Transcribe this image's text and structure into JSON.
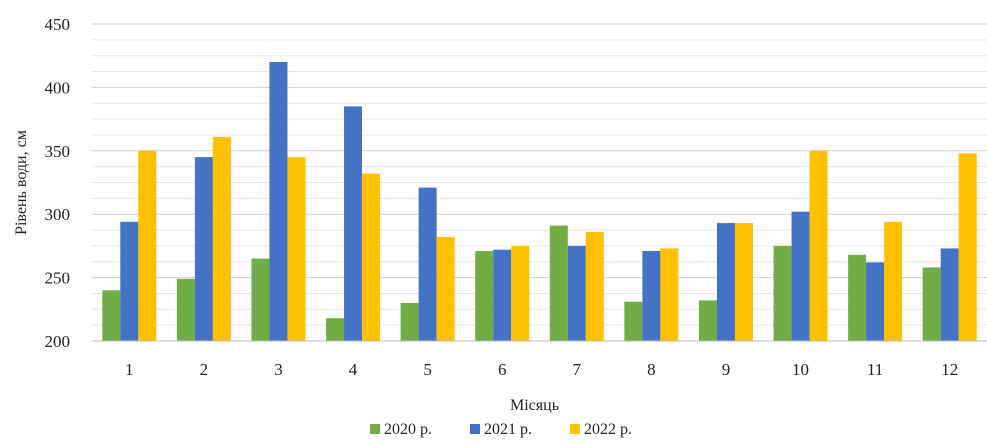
{
  "chart_data": {
    "type": "bar",
    "title": "",
    "xlabel": "Місяць",
    "ylabel": "Рівень води, см",
    "categories": [
      "1",
      "2",
      "3",
      "4",
      "5",
      "6",
      "7",
      "8",
      "9",
      "10",
      "11",
      "12"
    ],
    "series": [
      {
        "name": "2020 р.",
        "color": "#70ad47",
        "values": [
          240,
          249,
          265,
          218,
          230,
          271,
          291,
          231,
          232,
          275,
          268,
          258
        ]
      },
      {
        "name": "2021 р.",
        "color": "#4472c4",
        "values": [
          294,
          345,
          420,
          385,
          321,
          272,
          275,
          271,
          293,
          302,
          262,
          273
        ]
      },
      {
        "name": "2022 р.",
        "color": "#ffc000",
        "values": [
          350,
          361,
          345,
          332,
          282,
          275,
          286,
          273,
          293,
          350,
          294,
          348
        ]
      }
    ],
    "ylim": [
      200,
      450
    ],
    "yticks": [
      "200",
      "250",
      "300",
      "350",
      "400",
      "450"
    ],
    "grid": true,
    "legend_position": "bottom"
  }
}
